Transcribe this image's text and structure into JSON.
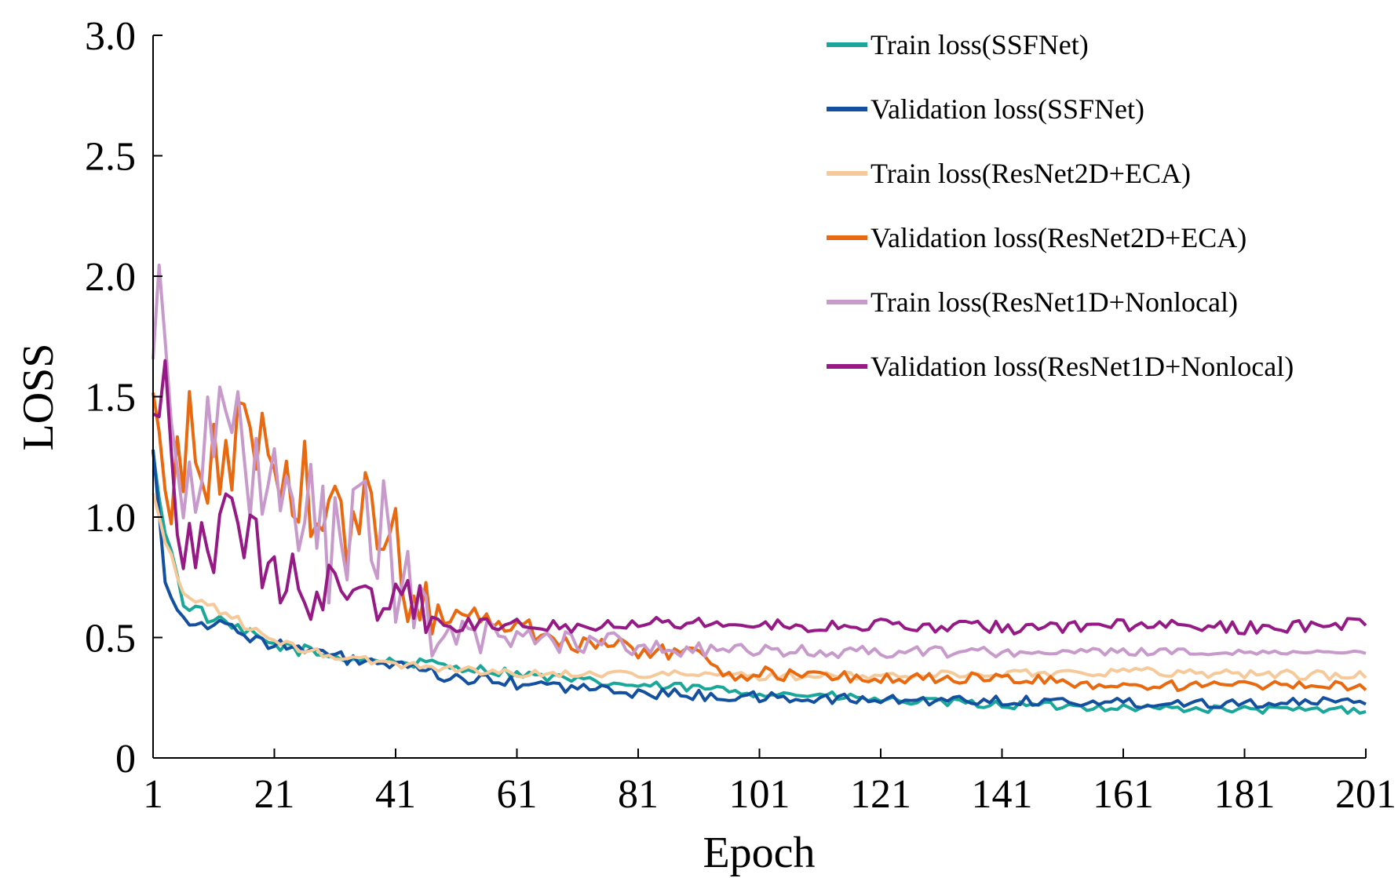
{
  "chart_data": {
    "type": "line",
    "xlabel": "Epoch",
    "ylabel": "LOSS",
    "xlim": [
      1,
      201
    ],
    "ylim": [
      0,
      3.0
    ],
    "xticks": [
      1,
      21,
      41,
      61,
      81,
      101,
      121,
      141,
      161,
      181,
      201
    ],
    "yticks": [
      0,
      0.5,
      1.0,
      1.5,
      2.0,
      2.5,
      3.0
    ],
    "ytick_labels": [
      "0",
      "0.5",
      "1.0",
      "1.5",
      "2.0",
      "2.5",
      "3.0"
    ],
    "grid": false,
    "legend_position": "top-right",
    "series": [
      {
        "name": "Train loss(SSFNet)",
        "color": "#1aa79a",
        "anchors": [
          [
            1,
            1.25
          ],
          [
            3,
            0.95
          ],
          [
            6,
            0.65
          ],
          [
            11,
            0.57
          ],
          [
            21,
            0.47
          ],
          [
            31,
            0.42
          ],
          [
            41,
            0.4
          ],
          [
            51,
            0.38
          ],
          [
            61,
            0.35
          ],
          [
            71,
            0.32
          ],
          [
            81,
            0.3
          ],
          [
            91,
            0.29
          ],
          [
            101,
            0.27
          ],
          [
            111,
            0.26
          ],
          [
            121,
            0.24
          ],
          [
            141,
            0.22
          ],
          [
            161,
            0.21
          ],
          [
            181,
            0.2
          ],
          [
            201,
            0.2
          ]
        ]
      },
      {
        "name": "Validation  loss(SSFNet)",
        "color": "#1450a0",
        "anchors": [
          [
            1,
            1.3
          ],
          [
            3,
            0.75
          ],
          [
            5,
            0.6
          ],
          [
            9,
            0.56
          ],
          [
            15,
            0.53
          ],
          [
            21,
            0.47
          ],
          [
            31,
            0.42
          ],
          [
            41,
            0.38
          ],
          [
            51,
            0.33
          ],
          [
            61,
            0.31
          ],
          [
            71,
            0.29
          ],
          [
            81,
            0.27
          ],
          [
            91,
            0.26
          ],
          [
            101,
            0.25
          ],
          [
            121,
            0.24
          ],
          [
            141,
            0.24
          ],
          [
            161,
            0.23
          ],
          [
            181,
            0.23
          ],
          [
            201,
            0.23
          ]
        ]
      },
      {
        "name": "Train  loss(ResNet2D+ECA)",
        "color": "#f6c99a",
        "anchors": [
          [
            1,
            1.1
          ],
          [
            3,
            0.9
          ],
          [
            6,
            0.68
          ],
          [
            11,
            0.63
          ],
          [
            21,
            0.48
          ],
          [
            31,
            0.42
          ],
          [
            41,
            0.39
          ],
          [
            51,
            0.37
          ],
          [
            61,
            0.35
          ],
          [
            81,
            0.35
          ],
          [
            101,
            0.34
          ],
          [
            121,
            0.34
          ],
          [
            141,
            0.35
          ],
          [
            161,
            0.36
          ],
          [
            181,
            0.35
          ],
          [
            201,
            0.34
          ]
        ]
      },
      {
        "name": "Validation  loss(ResNet2D+ECA)",
        "color": "#e8690f",
        "anchors": [
          [
            1,
            1.37
          ],
          [
            3,
            1.1
          ],
          [
            6,
            1.3
          ],
          [
            11,
            1.2
          ],
          [
            16,
            1.35
          ],
          [
            21,
            1.3
          ],
          [
            26,
            1.1
          ],
          [
            31,
            0.95
          ],
          [
            36,
            1.0
          ],
          [
            41,
            0.9
          ],
          [
            44,
            0.65
          ],
          [
            51,
            0.6
          ],
          [
            61,
            0.55
          ],
          [
            71,
            0.48
          ],
          [
            81,
            0.45
          ],
          [
            91,
            0.43
          ],
          [
            96,
            0.35
          ],
          [
            101,
            0.35
          ],
          [
            121,
            0.33
          ],
          [
            141,
            0.33
          ],
          [
            161,
            0.3
          ],
          [
            181,
            0.3
          ],
          [
            201,
            0.3
          ]
        ]
      },
      {
        "name": "Train  loss(ResNet1D+Nonlocal)",
        "color": "#c79acb",
        "anchors": [
          [
            1,
            1.85
          ],
          [
            3,
            1.8
          ],
          [
            6,
            1.25
          ],
          [
            11,
            1.3
          ],
          [
            16,
            1.25
          ],
          [
            21,
            1.05
          ],
          [
            26,
            0.95
          ],
          [
            31,
            0.9
          ],
          [
            36,
            0.95
          ],
          [
            41,
            0.85
          ],
          [
            44,
            0.55
          ],
          [
            51,
            0.5
          ],
          [
            61,
            0.5
          ],
          [
            71,
            0.49
          ],
          [
            81,
            0.47
          ],
          [
            91,
            0.45
          ],
          [
            101,
            0.44
          ],
          [
            121,
            0.44
          ],
          [
            161,
            0.44
          ],
          [
            181,
            0.44
          ],
          [
            201,
            0.44
          ]
        ]
      },
      {
        "name": "Validation  loss(ResNet1D+Nonlocal)",
        "color": "#951a85",
        "anchors": [
          [
            1,
            1.45
          ],
          [
            3,
            1.6
          ],
          [
            5,
            1.0
          ],
          [
            7,
            0.85
          ],
          [
            11,
            0.9
          ],
          [
            14,
            1.1
          ],
          [
            16,
            0.95
          ],
          [
            21,
            0.75
          ],
          [
            26,
            0.7
          ],
          [
            31,
            0.7
          ],
          [
            36,
            0.65
          ],
          [
            41,
            0.67
          ],
          [
            46,
            0.6
          ],
          [
            51,
            0.55
          ],
          [
            61,
            0.56
          ],
          [
            71,
            0.55
          ],
          [
            81,
            0.57
          ],
          [
            91,
            0.56
          ],
          [
            101,
            0.55
          ],
          [
            121,
            0.55
          ],
          [
            141,
            0.54
          ],
          [
            161,
            0.55
          ],
          [
            181,
            0.54
          ],
          [
            201,
            0.56
          ]
        ]
      }
    ]
  }
}
